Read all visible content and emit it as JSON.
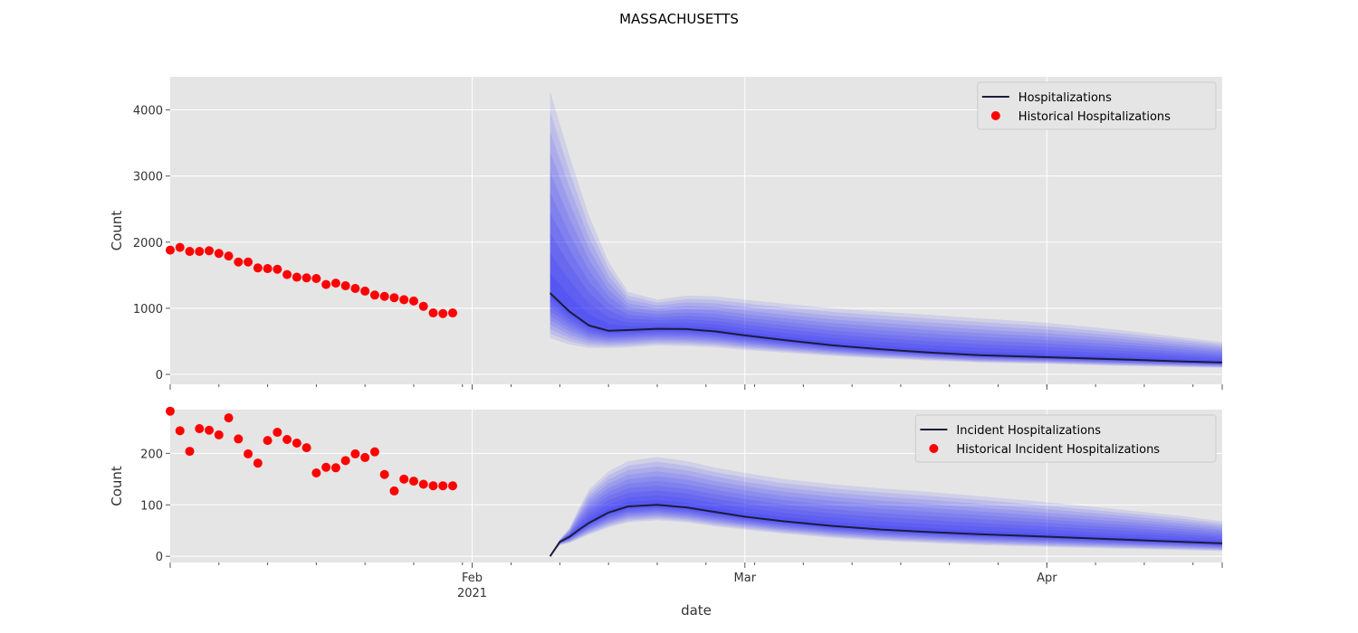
{
  "figure": {
    "suptitle": "MASSACHUSETTS"
  },
  "colors": {
    "panel_bg": "#e5e5e5",
    "grid": "#ffffff",
    "band": "#0000ff",
    "median_line": "#1c1c3a",
    "historical_points": "#ff0000"
  },
  "chart_data": [
    {
      "type": "line",
      "ylabel": "Count",
      "xlabel": "",
      "ylim": [
        -150,
        4500
      ],
      "yticks": [
        0,
        1000,
        2000,
        3000,
        4000
      ],
      "xlim": [
        "2021-01-01",
        "2021-04-19"
      ],
      "xticks": [
        {
          "date": "2021-02-01",
          "label": "Feb",
          "sublabel": "2021"
        },
        {
          "date": "2021-03-01",
          "label": "Mar",
          "sublabel": ""
        },
        {
          "date": "2021-04-01",
          "label": "Apr",
          "sublabel": ""
        }
      ],
      "grid": true,
      "legend": {
        "placement": "top-right",
        "entries": [
          {
            "label": "Hospitalizations",
            "kind": "line"
          },
          {
            "label": "Historical Hospitalizations",
            "kind": "point"
          }
        ]
      },
      "series": [
        {
          "name": "Hospitalizations",
          "kind": "line",
          "x": [
            "2021-02-09",
            "2021-02-11",
            "2021-02-13",
            "2021-02-15",
            "2021-02-17",
            "2021-02-20",
            "2021-02-23",
            "2021-02-26",
            "2021-03-01",
            "2021-03-05",
            "2021-03-10",
            "2021-03-15",
            "2021-03-20",
            "2021-03-25",
            "2021-04-01",
            "2021-04-08",
            "2021-04-15",
            "2021-04-19"
          ],
          "y": [
            1230,
            950,
            740,
            660,
            670,
            690,
            685,
            650,
            590,
            520,
            440,
            380,
            330,
            290,
            260,
            230,
            195,
            180
          ]
        },
        {
          "name": "Historical Hospitalizations",
          "kind": "scatter",
          "x": [
            "2021-01-01",
            "2021-01-02",
            "2021-01-03",
            "2021-01-04",
            "2021-01-05",
            "2021-01-06",
            "2021-01-07",
            "2021-01-08",
            "2021-01-09",
            "2021-01-10",
            "2021-01-11",
            "2021-01-12",
            "2021-01-13",
            "2021-01-14",
            "2021-01-15",
            "2021-01-16",
            "2021-01-17",
            "2021-01-18",
            "2021-01-19",
            "2021-01-20",
            "2021-01-21",
            "2021-01-22",
            "2021-01-23",
            "2021-01-24",
            "2021-01-25",
            "2021-01-26",
            "2021-01-27",
            "2021-01-28",
            "2021-01-29",
            "2021-01-30"
          ],
          "y": [
            1880,
            1920,
            1860,
            1860,
            1870,
            1830,
            1790,
            1700,
            1700,
            1610,
            1600,
            1590,
            1510,
            1470,
            1460,
            1450,
            1360,
            1380,
            1340,
            1300,
            1260,
            1200,
            1180,
            1160,
            1130,
            1110,
            1030,
            930,
            920,
            930
          ]
        }
      ],
      "bands": {
        "x": [
          "2021-02-09",
          "2021-02-11",
          "2021-02-13",
          "2021-02-15",
          "2021-02-17",
          "2021-02-20",
          "2021-02-23",
          "2021-02-26",
          "2021-03-01",
          "2021-03-05",
          "2021-03-10",
          "2021-03-15",
          "2021-03-20",
          "2021-03-25",
          "2021-04-01",
          "2021-04-08",
          "2021-04-15",
          "2021-04-19"
        ],
        "outer_upper": [
          4280,
          3300,
          2400,
          1700,
          1250,
          1130,
          1190,
          1180,
          1130,
          1070,
          1000,
          950,
          900,
          850,
          780,
          680,
          560,
          490
        ],
        "outer_lower": [
          550,
          450,
          400,
          400,
          410,
          440,
          430,
          410,
          370,
          330,
          280,
          240,
          210,
          180,
          160,
          130,
          110,
          100
        ]
      }
    },
    {
      "type": "line",
      "ylabel": "Count",
      "xlabel": "date",
      "ylim": [
        -12,
        285
      ],
      "yticks": [
        0,
        100,
        200
      ],
      "xlim": [
        "2021-01-01",
        "2021-04-19"
      ],
      "xticks": [
        {
          "date": "2021-02-01",
          "label": "Feb",
          "sublabel": "2021"
        },
        {
          "date": "2021-03-01",
          "label": "Mar",
          "sublabel": ""
        },
        {
          "date": "2021-04-01",
          "label": "Apr",
          "sublabel": ""
        }
      ],
      "grid": true,
      "legend": {
        "placement": "top-right",
        "entries": [
          {
            "label": "Incident Hospitalizations",
            "kind": "line"
          },
          {
            "label": "Historical Incident Hospitalizations",
            "kind": "point"
          }
        ]
      },
      "series": [
        {
          "name": "Incident Hospitalizations",
          "kind": "line",
          "x": [
            "2021-02-09",
            "2021-02-10",
            "2021-02-11",
            "2021-02-12",
            "2021-02-13",
            "2021-02-15",
            "2021-02-17",
            "2021-02-20",
            "2021-02-23",
            "2021-02-26",
            "2021-03-01",
            "2021-03-05",
            "2021-03-10",
            "2021-03-15",
            "2021-03-20",
            "2021-03-25",
            "2021-04-01",
            "2021-04-08",
            "2021-04-15",
            "2021-04-19"
          ],
          "y": [
            0,
            28,
            38,
            52,
            65,
            85,
            97,
            100,
            95,
            86,
            77,
            68,
            59,
            52,
            47,
            43,
            38,
            33,
            28,
            25
          ]
        },
        {
          "name": "Historical Incident Hospitalizations",
          "kind": "scatter",
          "x": [
            "2021-01-01",
            "2021-01-02",
            "2021-01-03",
            "2021-01-04",
            "2021-01-05",
            "2021-01-06",
            "2021-01-07",
            "2021-01-08",
            "2021-01-09",
            "2021-01-10",
            "2021-01-11",
            "2021-01-12",
            "2021-01-13",
            "2021-01-14",
            "2021-01-15",
            "2021-01-16",
            "2021-01-17",
            "2021-01-18",
            "2021-01-19",
            "2021-01-20",
            "2021-01-21",
            "2021-01-22",
            "2021-01-23",
            "2021-01-24",
            "2021-01-25",
            "2021-01-26",
            "2021-01-27",
            "2021-01-28",
            "2021-01-29",
            "2021-01-30"
          ],
          "y": [
            282,
            244,
            204,
            248,
            245,
            236,
            269,
            228,
            199,
            181,
            225,
            241,
            227,
            220,
            211,
            162,
            173,
            172,
            186,
            199,
            192,
            203,
            159,
            127,
            150,
            146,
            140,
            137,
            137,
            137
          ]
        }
      ],
      "bands": {
        "x": [
          "2021-02-09",
          "2021-02-10",
          "2021-02-11",
          "2021-02-12",
          "2021-02-13",
          "2021-02-15",
          "2021-02-17",
          "2021-02-20",
          "2021-02-23",
          "2021-02-26",
          "2021-03-01",
          "2021-03-05",
          "2021-03-10",
          "2021-03-15",
          "2021-03-20",
          "2021-03-25",
          "2021-04-01",
          "2021-04-08",
          "2021-04-15",
          "2021-04-19"
        ],
        "outer_upper": [
          0,
          33,
          55,
          95,
          130,
          165,
          185,
          193,
          185,
          172,
          162,
          150,
          140,
          132,
          125,
          117,
          105,
          92,
          78,
          68
        ],
        "outer_lower": [
          0,
          22,
          26,
          34,
          42,
          56,
          66,
          70,
          66,
          58,
          52,
          44,
          36,
          30,
          26,
          22,
          18,
          15,
          12,
          10
        ]
      }
    }
  ]
}
